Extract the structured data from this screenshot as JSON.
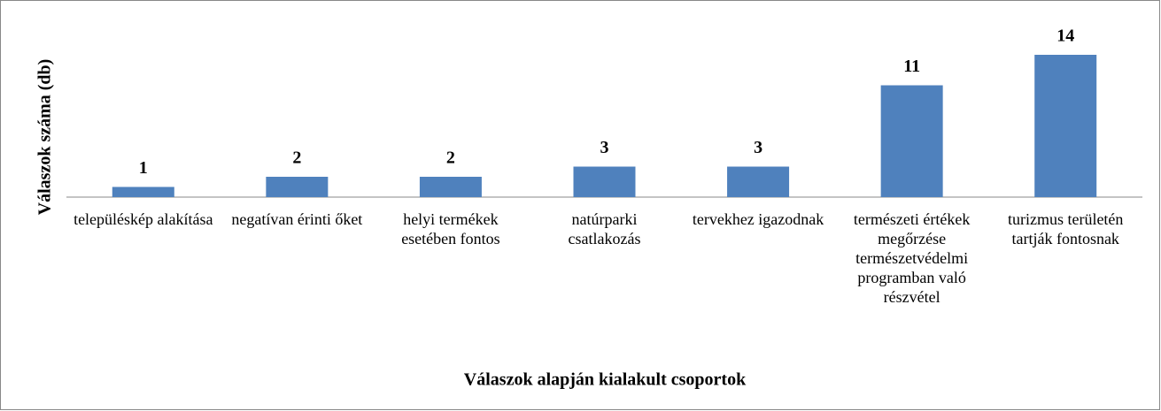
{
  "chart_data": {
    "type": "bar",
    "xlabel": "Válaszok alapján kialakult csoportok",
    "ylabel": "Válaszok száma (db)",
    "categories": [
      "településkép alakítása",
      "negatívan érinti őket",
      "helyi termékek esetében fontos",
      "natúrparki csatlakozás",
      "tervekhez igazodnak",
      "természeti értékek megőrzése természetvédelmi programban való részvétel",
      "turizmus területén tartják fontosnak"
    ],
    "values": [
      1,
      2,
      2,
      3,
      3,
      11,
      14
    ],
    "color": "#4f81bd",
    "ylim": [
      0,
      16
    ]
  }
}
